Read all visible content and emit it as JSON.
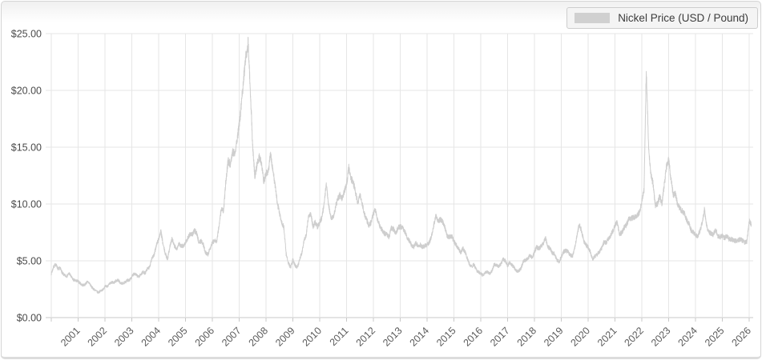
{
  "chart_data": {
    "type": "line",
    "title": "",
    "legend_label": "Nickel Price (USD / Pound)",
    "legend_position": "top-right",
    "grid": true,
    "xlabel": "",
    "ylabel": "",
    "x_range": [
      1999.94,
      2026.15
    ],
    "y_range": [
      0,
      25
    ],
    "x_ticks": [
      "2001",
      "2002",
      "2003",
      "2004",
      "2005",
      "2006",
      "2007",
      "2008",
      "2009",
      "2010",
      "2011",
      "2012",
      "2013",
      "2014",
      "2015",
      "2016",
      "2017",
      "2018",
      "2019",
      "2020",
      "2021",
      "2022",
      "2023",
      "2024",
      "2025",
      "2026"
    ],
    "y_ticks": [
      {
        "value": 0,
        "label": "$0.00"
      },
      {
        "value": 5,
        "label": "$5.00"
      },
      {
        "value": 10,
        "label": "$10.00"
      },
      {
        "value": 15,
        "label": "$15.00"
      },
      {
        "value": 20,
        "label": "$20.00"
      },
      {
        "value": 25,
        "label": "$25.00"
      }
    ],
    "series": [
      {
        "name": "Nickel Price (USD / Pound)",
        "unit": "USD per pound",
        "x_start_year": 2000.0,
        "x_step_years": 0.0833333,
        "values": [
          3.85,
          4.45,
          4.7,
          4.3,
          4.35,
          3.9,
          3.7,
          3.65,
          3.9,
          3.55,
          3.3,
          3.25,
          3.2,
          3.0,
          2.85,
          2.9,
          3.15,
          3.05,
          2.7,
          2.5,
          2.35,
          2.2,
          2.35,
          2.45,
          2.75,
          2.75,
          2.95,
          3.1,
          3.08,
          3.25,
          3.3,
          3.0,
          3.02,
          3.1,
          3.28,
          3.3,
          3.6,
          3.9,
          3.75,
          3.58,
          3.8,
          4.0,
          3.92,
          4.3,
          4.42,
          5.3,
          5.5,
          6.4,
          6.9,
          7.6,
          6.4,
          5.6,
          5.15,
          6.25,
          6.95,
          6.3,
          6.05,
          6.5,
          6.35,
          6.3,
          6.6,
          7.0,
          7.35,
          7.3,
          7.65,
          7.45,
          6.6,
          6.75,
          6.4,
          5.7,
          5.55,
          6.1,
          6.6,
          6.75,
          6.7,
          8.1,
          9.6,
          9.3,
          11.9,
          13.8,
          13.5,
          14.6,
          14.5,
          15.6,
          16.9,
          18.8,
          21.1,
          23.0,
          24.2,
          20.0,
          15.2,
          12.4,
          13.5,
          14.2,
          13.6,
          11.9,
          12.7,
          12.8,
          14.4,
          13.1,
          11.7,
          10.2,
          9.2,
          8.4,
          7.9,
          5.6,
          4.8,
          4.4,
          5.1,
          4.6,
          4.4,
          5.1,
          5.7,
          6.8,
          7.3,
          8.9,
          9.2,
          8.0,
          8.4,
          8.0,
          8.4,
          8.8,
          10.1,
          11.8,
          9.9,
          8.8,
          8.8,
          9.7,
          10.4,
          10.8,
          10.5,
          11.1,
          11.7,
          13.2,
          12.2,
          11.9,
          11.1,
          10.1,
          10.8,
          10.0,
          9.1,
          8.6,
          8.1,
          8.4,
          9.2,
          9.5,
          8.5,
          8.0,
          7.7,
          7.4,
          7.3,
          7.1,
          7.9,
          7.8,
          7.4,
          7.9,
          8.0,
          7.9,
          7.6,
          7.1,
          6.8,
          6.4,
          6.2,
          6.6,
          6.3,
          6.4,
          6.2,
          6.3,
          6.4,
          6.6,
          7.2,
          8.1,
          9.0,
          8.4,
          8.7,
          8.4,
          7.9,
          7.2,
          7.1,
          7.2,
          6.7,
          6.4,
          6.1,
          5.7,
          6.1,
          5.8,
          5.2,
          4.7,
          4.5,
          4.7,
          4.2,
          4.0,
          3.9,
          3.7,
          3.95,
          4.0,
          3.9,
          4.1,
          4.7,
          4.65,
          4.5,
          4.7,
          5.15,
          5.0,
          4.55,
          4.9,
          4.6,
          4.4,
          4.1,
          4.1,
          4.35,
          4.95,
          5.05,
          5.2,
          5.5,
          5.25,
          5.8,
          6.2,
          6.05,
          6.3,
          6.55,
          7.0,
          6.2,
          6.1,
          5.7,
          5.6,
          5.1,
          4.9,
          5.35,
          5.8,
          5.9,
          5.8,
          5.5,
          5.4,
          6.1,
          7.2,
          8.2,
          7.7,
          6.8,
          6.4,
          6.2,
          5.8,
          5.1,
          5.4,
          5.55,
          5.8,
          6.1,
          6.6,
          6.6,
          6.9,
          7.2,
          7.6,
          8.1,
          8.4,
          7.4,
          7.45,
          7.9,
          8.1,
          8.6,
          8.7,
          8.8,
          8.9,
          9.0,
          9.3,
          10.2,
          11.2,
          21.7,
          15.2,
          12.7,
          11.8,
          9.9,
          10.0,
          10.7,
          10.0,
          11.6,
          13.3,
          13.9,
          12.3,
          10.8,
          10.9,
          10.0,
          9.6,
          9.4,
          9.2,
          8.6,
          8.3,
          7.7,
          7.5,
          7.3,
          7.2,
          7.6,
          8.4,
          9.5,
          8.1,
          7.5,
          7.4,
          7.3,
          7.8,
          7.2,
          7.1,
          7.2,
          7.0,
          7.2,
          6.9,
          6.9,
          6.8,
          6.75,
          6.8,
          6.9,
          6.8,
          6.6,
          6.7,
          8.5,
          8.2
        ]
      }
    ],
    "colors": {
      "line": "#cecece",
      "grid": "#e6e6e6",
      "axis": "#c9c9c9",
      "y_label": "#4a4a4a",
      "x_label": "#5c5c5c",
      "legend_bg": "#f4f4f4",
      "legend_border": "#cdcdcd",
      "legend_text": "#3c3c3c",
      "legend_swatch": "#d0d0d0"
    }
  }
}
